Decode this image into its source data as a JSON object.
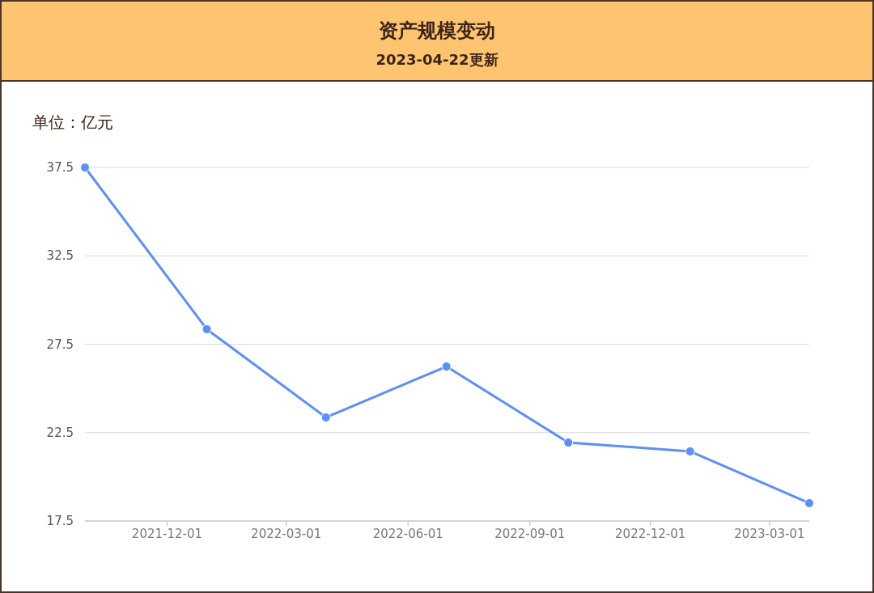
{
  "chart_data": {
    "type": "line",
    "title": "资产规模变动",
    "subtitle": "2023-04-22更新",
    "ylabel": "单位：亿元",
    "x": [
      "2021-09-30",
      "2021-12-31",
      "2022-03-31",
      "2022-06-30",
      "2022-09-30",
      "2022-12-31",
      "2023-03-31"
    ],
    "series": [
      {
        "color": "#5b8ff9",
        "values": [
          37.5,
          28.35,
          23.36,
          26.24,
          21.94,
          21.44,
          18.51
        ]
      }
    ],
    "xlim": [
      "2021-09-30",
      "2023-03-31"
    ],
    "xticks": [
      {
        "value": "2021-12-01",
        "label": "2021-12-01"
      },
      {
        "value": "2022-03-01",
        "label": "2022-03-01"
      },
      {
        "value": "2022-06-01",
        "label": "2022-06-01"
      },
      {
        "value": "2022-09-01",
        "label": "2022-09-01"
      },
      {
        "value": "2022-12-01",
        "label": "2022-12-01"
      },
      {
        "value": "2023-03-01",
        "label": "2023-03-01"
      }
    ],
    "ylim": [
      17.5,
      37.5
    ],
    "yticks": [
      17.5,
      22.5,
      27.5,
      32.5,
      37.5
    ],
    "grid": "y",
    "marker": "circle",
    "line_style": "solid"
  }
}
